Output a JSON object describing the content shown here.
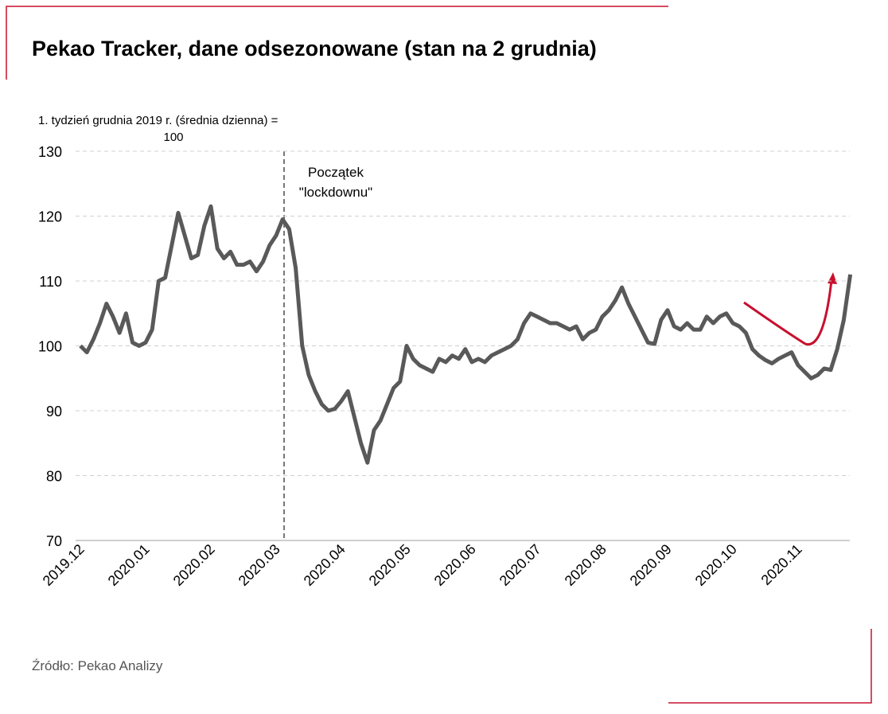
{
  "chart_data": {
    "type": "line",
    "title": "Pekao Tracker, dane odsezonowane (stan na 2 grudnia)",
    "ylabel_lines": [
      "1. tydzień grudnia 2019 r. (średnia dzienna) =",
      "100"
    ],
    "annotation_lines": [
      "Początek",
      "\"lockdownu\""
    ],
    "source": "Źródło: Pekao Analizy",
    "categories": [
      "2019.12",
      null,
      null,
      null,
      null,
      null,
      null,
      null,
      null,
      null,
      "2020.01",
      null,
      null,
      null,
      null,
      null,
      null,
      null,
      null,
      null,
      "2020.02",
      null,
      null,
      null,
      null,
      null,
      null,
      null,
      null,
      null,
      "2020.03",
      null,
      null,
      null,
      null,
      null,
      null,
      null,
      null,
      null,
      "2020.04",
      null,
      null,
      null,
      null,
      null,
      null,
      null,
      null,
      null,
      "2020.05",
      null,
      null,
      null,
      null,
      null,
      null,
      null,
      null,
      null,
      "2020.06",
      null,
      null,
      null,
      null,
      null,
      null,
      null,
      null,
      null,
      "2020.07",
      null,
      null,
      null,
      null,
      null,
      null,
      null,
      null,
      null,
      "2020.08",
      null,
      null,
      null,
      null,
      null,
      null,
      null,
      null,
      null,
      "2020.09",
      null,
      null,
      null,
      null,
      null,
      null,
      null,
      null,
      null,
      "2020.10",
      null,
      null,
      null,
      null,
      null,
      null,
      null,
      null,
      null,
      "2020.11",
      null,
      null,
      null,
      null,
      null,
      null,
      null,
      null
    ],
    "series": [
      {
        "name": "Pekao Tracker",
        "color": "#595959",
        "values": [
          100,
          99,
          101,
          103.5,
          106.5,
          104.5,
          102,
          105,
          100.5,
          100,
          100.5,
          102.5,
          110,
          110.5,
          115.5,
          120.5,
          117,
          113.5,
          114,
          118.5,
          121.5,
          115,
          113.5,
          114.5,
          112.5,
          112.5,
          113,
          111.5,
          113,
          115.5,
          117,
          119.5,
          118,
          112,
          100,
          95.5,
          93,
          91,
          90,
          90.3,
          91.5,
          93,
          89,
          85,
          82,
          87,
          88.5,
          91,
          93.5,
          94.5,
          100,
          98,
          97,
          96.5,
          96,
          98,
          97.5,
          98.5,
          98,
          99.5,
          97.5,
          98,
          97.5,
          98.5,
          99,
          99.5,
          100,
          101,
          103.5,
          105,
          104.5,
          104,
          103.5,
          103.5,
          103,
          102.5,
          103,
          101,
          102,
          102.5,
          104.5,
          105.5,
          107,
          109,
          106.5,
          104.5,
          102.5,
          100.5,
          100.3,
          104,
          105.5,
          103,
          102.5,
          103.5,
          102.5,
          102.5,
          104.5,
          103.5,
          104.5,
          105,
          103.5,
          103,
          102,
          99.5,
          98.5,
          97.8,
          97.3,
          98,
          98.5,
          99,
          97,
          96,
          95,
          95.5,
          96.5,
          96.3,
          99.5,
          104,
          111
        ]
      }
    ],
    "ylim": [
      70,
      130
    ],
    "yticks": [
      70,
      80,
      90,
      100,
      110,
      120,
      130
    ],
    "grid": true
  }
}
